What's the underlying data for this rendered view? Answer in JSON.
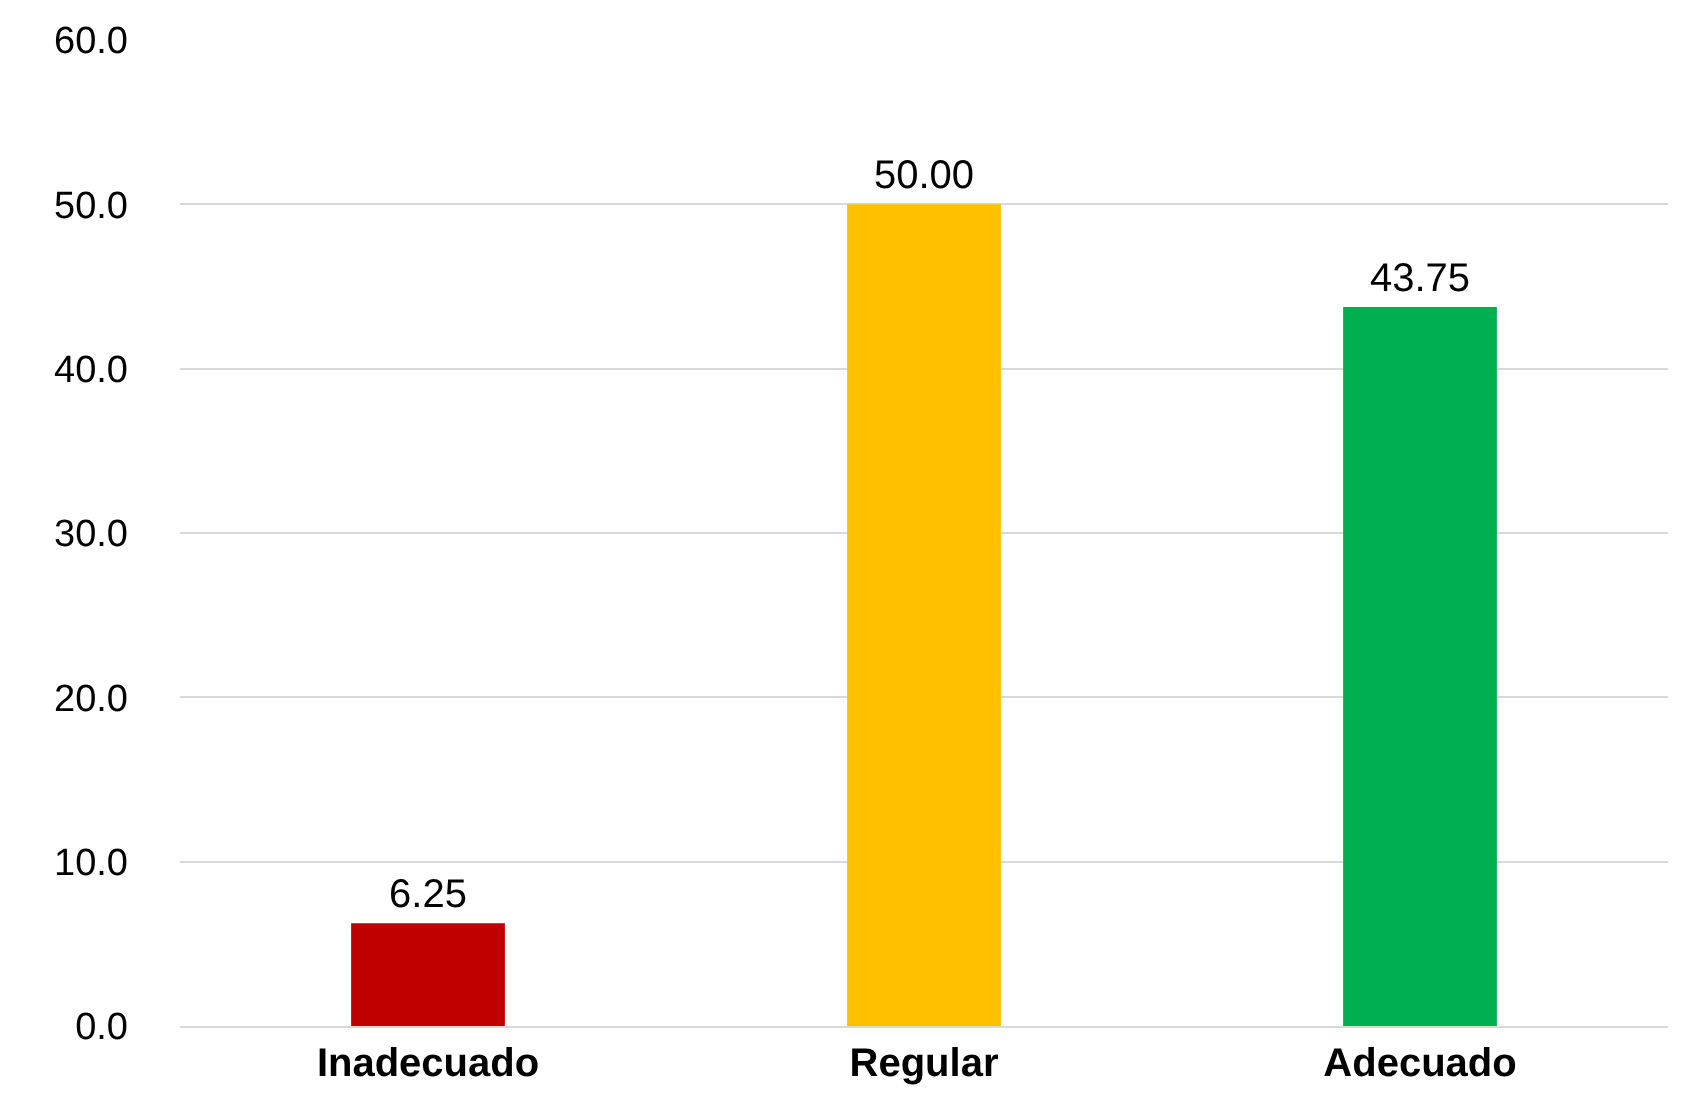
{
  "chart_data": {
    "type": "bar",
    "categories": [
      "Inadecuado",
      "Regular",
      "Adecuado"
    ],
    "values": [
      6.25,
      50,
      43.75
    ],
    "colors": [
      "#c00000",
      "#ffc000",
      "#00b050"
    ],
    "value_labels": [
      "6.25",
      "50.00",
      "43.75"
    ],
    "ylim": [
      0,
      60
    ],
    "yticks": [
      {
        "value": 0,
        "label": "0.0"
      },
      {
        "value": 10,
        "label": "10.0"
      },
      {
        "value": 20,
        "label": "20.0"
      },
      {
        "value": 30,
        "label": "30.0"
      },
      {
        "value": 40,
        "label": "40.0"
      },
      {
        "value": 50,
        "label": "50.0"
      },
      {
        "value": 60,
        "label": "60.0"
      }
    ],
    "grid": "y",
    "legend": false
  }
}
